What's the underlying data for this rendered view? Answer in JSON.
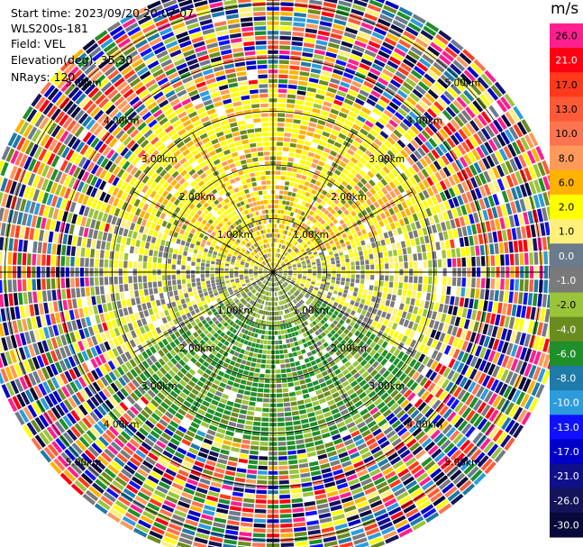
{
  "header": {
    "start_time": "Start time: 2023/09/20 20:07:07",
    "instrument": "WLS200s-181",
    "field": "Field: VEL",
    "elevation": "Elevation(deg): 35.30",
    "nrays": "NRays: 120"
  },
  "colorbar": {
    "unit": "m/s",
    "levels": [
      {
        "label": "26.0",
        "color": "#ff1f8f"
      },
      {
        "label": "21.0",
        "color": "#ff0010"
      },
      {
        "label": "17.0",
        "color": "#ff3a1a"
      },
      {
        "label": "13.0",
        "color": "#ff5a38"
      },
      {
        "label": "10.0",
        "color": "#ff7450"
      },
      {
        "label": "8.0",
        "color": "#ff9a5a"
      },
      {
        "label": "6.0",
        "color": "#ffb300"
      },
      {
        "label": "2.0",
        "color": "#ffff00"
      },
      {
        "label": "1.0",
        "color": "#fff07a"
      },
      {
        "label": "0.0",
        "color": "#6b7b8c"
      },
      {
        "label": "-1.0",
        "color": "#7a7a7a"
      },
      {
        "label": "-2.0",
        "color": "#9ac43a"
      },
      {
        "label": "-4.0",
        "color": "#6a8c1e"
      },
      {
        "label": "-6.0",
        "color": "#1f8f2a"
      },
      {
        "label": "-8.0",
        "color": "#1e7aa8"
      },
      {
        "label": "-10.0",
        "color": "#2d9cdb"
      },
      {
        "label": "-13.0",
        "color": "#1010ff"
      },
      {
        "label": "-17.0",
        "color": "#0000c8"
      },
      {
        "label": "-21.0",
        "color": "#101088"
      },
      {
        "label": "-26.0",
        "color": "#14145a"
      },
      {
        "label": "-30.0",
        "color": "#0a0a3a"
      }
    ]
  },
  "chart_data": {
    "type": "heatmap",
    "projection": "polar PPI",
    "field": "VEL",
    "nrays": 120,
    "range_rings_km": [
      1,
      2,
      3,
      4,
      5
    ],
    "ring_labels": [
      "1.00km",
      "2.00km",
      "3.00km",
      "4.00km",
      "5.00km"
    ],
    "azimuth_spokes": 12,
    "max_range_km": 5.5,
    "pattern_summary": [
      {
        "sector": "north (~290-70 deg)",
        "near_range_km": [
          0,
          3.2
        ],
        "velocity_ms": [
          1,
          6
        ]
      },
      {
        "sector": "south (~120-240 deg)",
        "near_range_km": [
          0,
          3.5
        ],
        "velocity_ms": [
          -8,
          -2
        ]
      },
      {
        "sector": "east/west",
        "near_range_km": [
          0,
          2.8
        ],
        "velocity_ms": [
          -1,
          2
        ]
      },
      {
        "sector": "all",
        "far_range_km": [
          3.5,
          5.5
        ],
        "velocity_ms": "noise (folded)"
      }
    ]
  }
}
